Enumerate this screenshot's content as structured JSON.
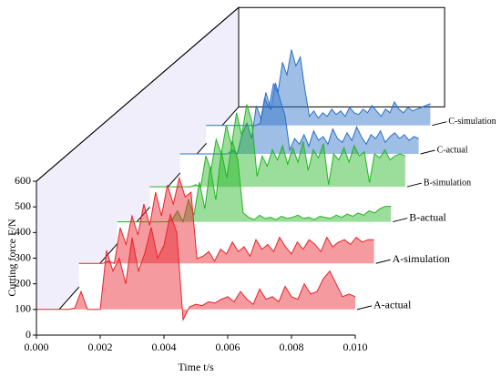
{
  "chart_data": {
    "type": "waterfall",
    "ylabel": "Cutting force F/N",
    "xlabel": "Time t/s",
    "xlim": [
      0,
      0.01
    ],
    "ylim": [
      0,
      600
    ],
    "xticks": [
      {
        "value": 0,
        "label": "0.000"
      },
      {
        "value": 0.002,
        "label": "0.002"
      },
      {
        "value": 0.004,
        "label": "0.004"
      },
      {
        "value": 0.006,
        "label": "0.006"
      },
      {
        "value": 0.008,
        "label": "0.008"
      },
      {
        "value": 0.01,
        "label": "0.010"
      }
    ],
    "yticks": [
      0,
      100,
      200,
      300,
      400,
      500,
      600
    ],
    "x": [
      0,
      0.0002,
      0.0004,
      0.0006,
      0.0008,
      0.001,
      0.0012,
      0.0014,
      0.0016,
      0.0018,
      0.002,
      0.0022,
      0.0024,
      0.0026,
      0.0028,
      0.003,
      0.0032,
      0.0034,
      0.0036,
      0.0038,
      0.004,
      0.0042,
      0.0044,
      0.0046,
      0.0048,
      0.005,
      0.0052,
      0.0054,
      0.0056,
      0.0058,
      0.006,
      0.0062,
      0.0064,
      0.0066,
      0.0068,
      0.007,
      0.0072,
      0.0074,
      0.0076,
      0.0078,
      0.008,
      0.0082,
      0.0084,
      0.0086,
      0.0088,
      0.009,
      0.0092,
      0.0094,
      0.0096,
      0.0098,
      0.01
    ],
    "series": [
      {
        "name": "A-actual",
        "color": "#e8222a",
        "values": [
          100,
          100,
          100,
          100,
          100,
          100,
          105,
          170,
          100,
          100,
          100,
          330,
          250,
          300,
          200,
          380,
          250,
          320,
          420,
          300,
          350,
          470,
          400,
          60,
          110,
          120,
          115,
          130,
          125,
          140,
          150,
          130,
          170,
          140,
          120,
          180,
          140,
          150,
          130,
          190,
          150,
          140,
          200,
          160,
          170,
          220,
          250,
          200,
          150,
          160,
          150
        ]
      },
      {
        "name": "A-simulation",
        "color": "#e8222a",
        "values": [
          100,
          100,
          100,
          100,
          100,
          110,
          100,
          250,
          180,
          300,
          220,
          350,
          260,
          400,
          300,
          430,
          350,
          460,
          380,
          400,
          120,
          130,
          150,
          110,
          160,
          140,
          190,
          150,
          170,
          130,
          200,
          160,
          180,
          150,
          210,
          170,
          140,
          190,
          160,
          200,
          180,
          150,
          210,
          170,
          190,
          200,
          180,
          210,
          190,
          200,
          200
        ]
      },
      {
        "name": "B-actual",
        "color": "#22b422",
        "values": [
          100,
          100,
          100,
          100,
          100,
          100,
          100,
          100,
          100,
          100,
          110,
          150,
          100,
          200,
          130,
          280,
          160,
          350,
          200,
          420,
          300,
          470,
          380,
          140,
          120,
          110,
          130,
          115,
          120,
          110,
          125,
          115,
          120,
          130,
          115,
          120,
          110,
          125,
          120,
          115,
          130,
          120,
          135,
          125,
          140,
          130,
          150,
          140,
          160,
          170,
          170
        ]
      },
      {
        "name": "B-simulation",
        "color": "#22b422",
        "values": [
          100,
          100,
          100,
          100,
          100,
          100,
          100,
          100,
          100,
          110,
          100,
          250,
          180,
          330,
          260,
          400,
          300,
          460,
          350,
          500,
          420,
          150,
          250,
          200,
          280,
          230,
          300,
          210,
          290,
          220,
          320,
          180,
          280,
          240,
          310,
          110,
          260,
          230,
          290,
          220,
          300,
          250,
          270,
          120,
          260,
          240,
          280,
          230,
          250,
          260,
          250
        ]
      },
      {
        "name": "C-actual",
        "color": "#2a6ec8",
        "values": [
          100,
          100,
          100,
          100,
          100,
          100,
          100,
          100,
          100,
          100,
          100,
          120,
          100,
          200,
          260,
          180,
          350,
          280,
          420,
          330,
          470,
          380,
          300,
          120,
          180,
          150,
          200,
          140,
          220,
          170,
          190,
          150,
          230,
          180,
          160,
          210,
          170,
          240,
          190,
          150,
          200,
          180,
          220,
          160,
          190,
          210,
          180,
          200,
          170,
          190,
          180
        ]
      },
      {
        "name": "C-simulation",
        "color": "#2a6ec8",
        "values": [
          100,
          100,
          100,
          100,
          100,
          100,
          100,
          100,
          100,
          100,
          100,
          100,
          110,
          250,
          200,
          330,
          280,
          450,
          380,
          520,
          430,
          480,
          300,
          150,
          180,
          140,
          170,
          150,
          190,
          160,
          180,
          150,
          200,
          170,
          160,
          190,
          170,
          210,
          180,
          150,
          190,
          170,
          230,
          190,
          170,
          200,
          180,
          190,
          200,
          210,
          220
        ]
      }
    ]
  }
}
